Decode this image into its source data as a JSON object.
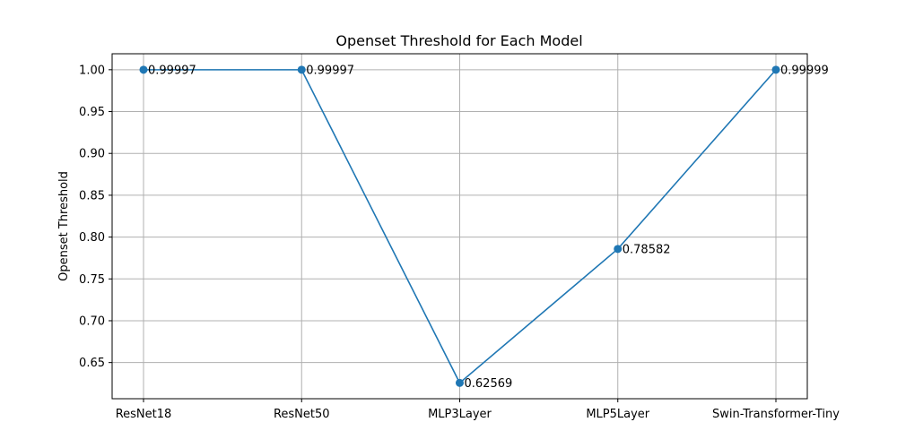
{
  "chart_data": {
    "type": "line",
    "title": "Openset Threshold for Each Model",
    "xlabel": "",
    "ylabel": "Openset Threshold",
    "categories": [
      "ResNet18",
      "ResNet50",
      "MLP3Layer",
      "MLP5Layer",
      "Swin-Transformer-Tiny"
    ],
    "series": [
      {
        "values": [
          0.99997,
          0.99997,
          0.62569,
          0.78582,
          0.99999
        ],
        "data_labels": [
          "0.99997",
          "0.99997",
          "0.62569",
          "0.78582",
          "0.99999"
        ],
        "color": "#1f77b4",
        "marker": "circle"
      }
    ],
    "ylim": [
      0.6068,
      1.0191
    ],
    "yticks": [
      0.65,
      0.7,
      0.75,
      0.8,
      0.85,
      0.9,
      0.95,
      1.0
    ],
    "ytick_labels": [
      "0.65",
      "0.70",
      "0.75",
      "0.80",
      "0.85",
      "0.90",
      "0.95",
      "1.00"
    ],
    "grid": true
  }
}
